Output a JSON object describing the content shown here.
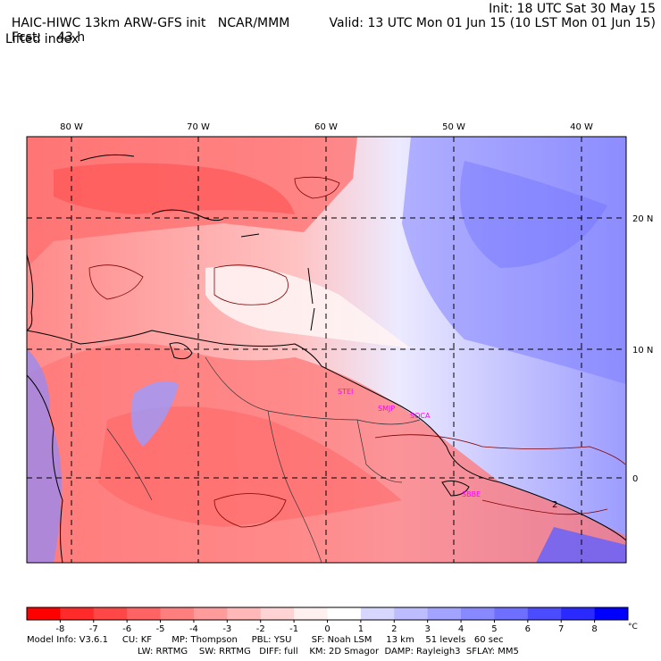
{
  "header": {
    "title": "HAIC-HIWC 13km ARW-GFS init",
    "org": "NCAR/MMM",
    "init": "Init: 18 UTC Sat 30 May 15",
    "fcst": "Fcst:",
    "fcst_value": "43 h",
    "valid": "Valid: 13 UTC Mon 01 Jun 15 (10 LST Mon 01 Jun 15)",
    "field": "Lifted index"
  },
  "map": {
    "lon_labels": [
      "80 W",
      "70 W",
      "60 W",
      "50 W",
      "40 W"
    ],
    "lat_labels": [
      "20 N",
      "10 N",
      "0"
    ],
    "stations": [
      "STEI",
      "SMJP",
      "SOCA",
      "SBBE"
    ],
    "contour_label": "2"
  },
  "colorbar": {
    "ticks": [
      "-8",
      "-7",
      "-6",
      "-5",
      "-4",
      "-3",
      "-2",
      "-1",
      "0",
      "1",
      "2",
      "3",
      "4",
      "5",
      "6",
      "7",
      "8"
    ],
    "unit": "°C",
    "colors": [
      "#ff0000",
      "#ff2a2a",
      "#ff4747",
      "#ff6363",
      "#ff7f7f",
      "#ff9b9b",
      "#ffb7b7",
      "#ffd3d3",
      "#fff0f0",
      "#ffffff",
      "#d6d6ff",
      "#bcbcff",
      "#a2a2ff",
      "#8888ff",
      "#6e6eff",
      "#4c4cff",
      "#2a2aff",
      "#0000ff"
    ]
  },
  "footer": {
    "line1": "Model Info: V3.6.1     CU: KF       MP: Thompson     PBL: YSU       SF: Noah LSM     13 km    51 levels   60 sec",
    "line2": "LW: RRTMG    SW: RRTMG   DIFF: full    KM: 2D Smagor  DAMP: Rayleigh3  SFLAY: MM5"
  }
}
